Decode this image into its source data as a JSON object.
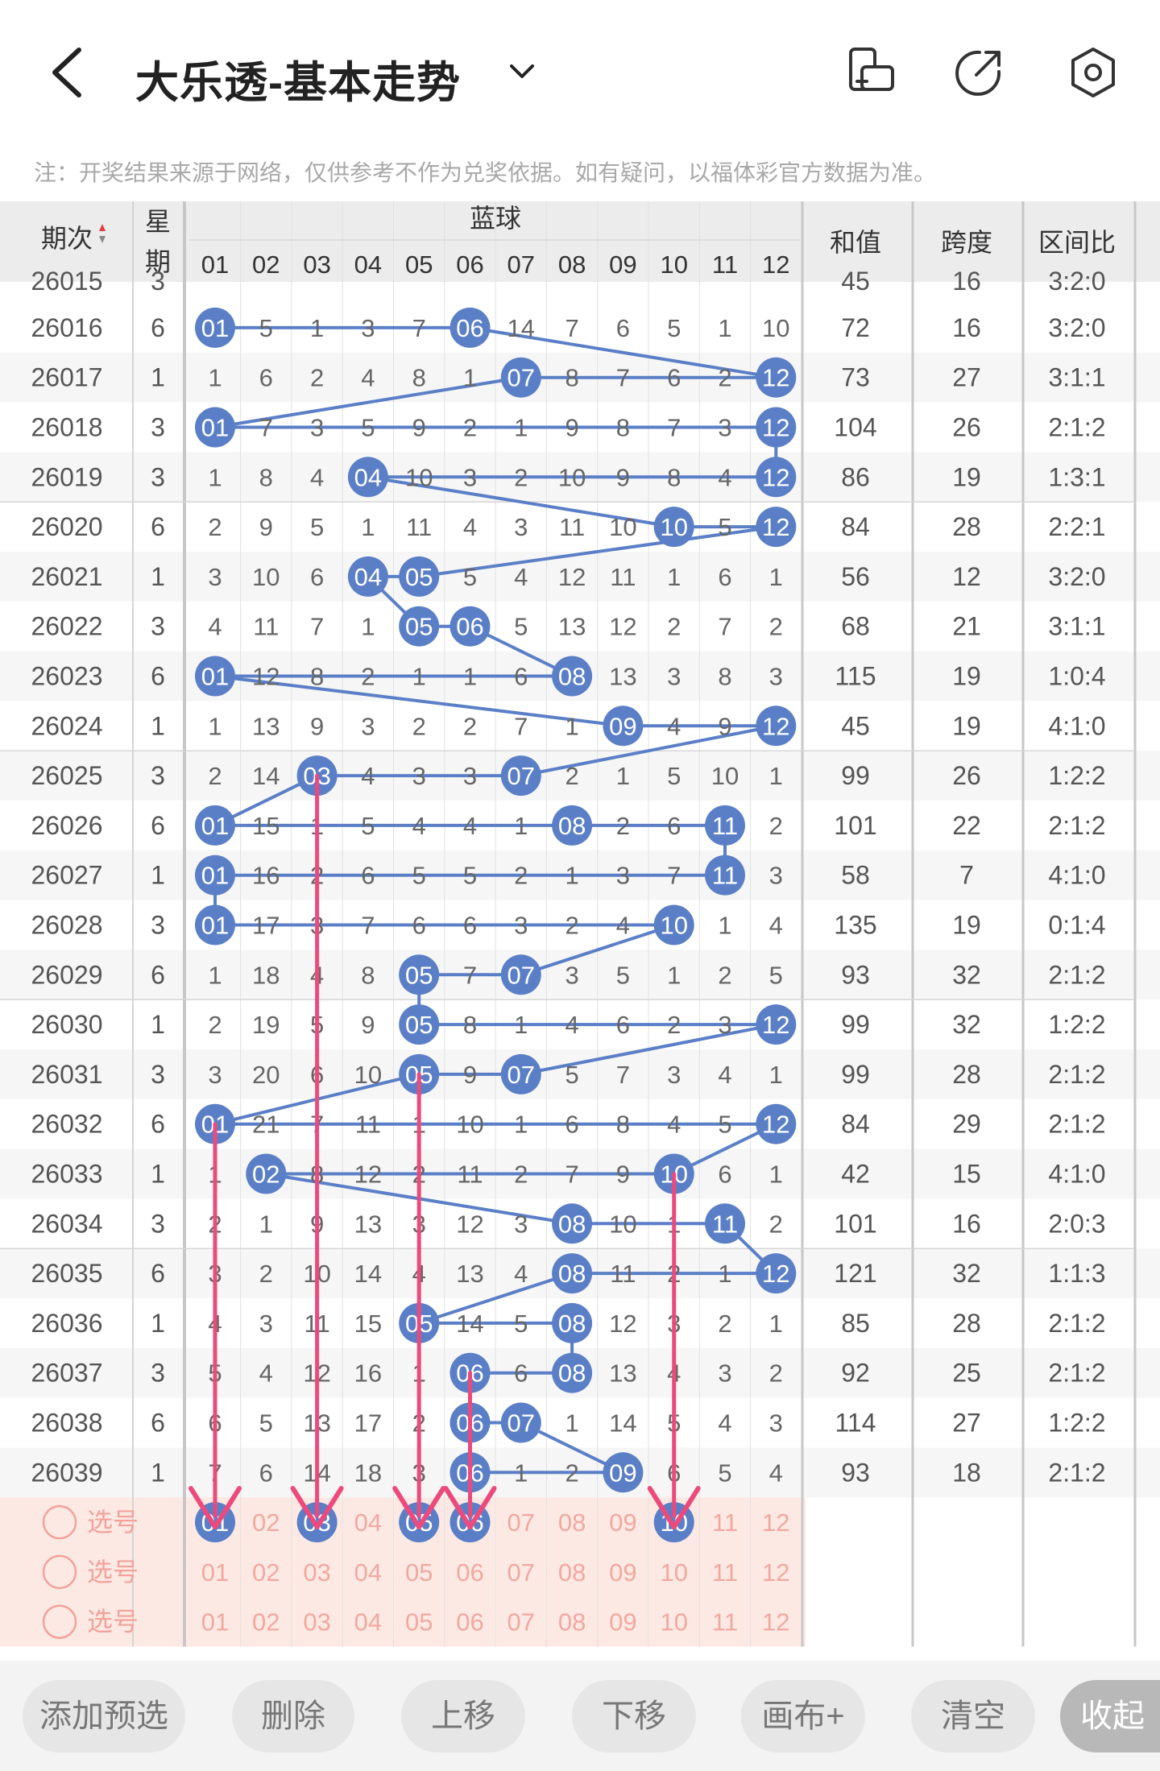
{
  "header": {
    "title": "大乐透-基本走势",
    "note": "注：开奖结果来源于网络，仅供参考不作为兑奖依据。如有疑问，以福体彩官方数据为准。"
  },
  "columns": {
    "period": "期次",
    "week_top": "星",
    "week_bottom": "期",
    "blue_group": "蓝球",
    "numbers": [
      "01",
      "02",
      "03",
      "04",
      "05",
      "06",
      "07",
      "08",
      "09",
      "10",
      "11",
      "12"
    ],
    "sum": "和值",
    "span": "跨度",
    "ratio": "区间比"
  },
  "partial_row": {
    "period": "26015",
    "week": "3",
    "sum": "45",
    "span": "16",
    "ratio": "3:2:0"
  },
  "rows": [
    {
      "period": "26016",
      "week": "6",
      "cells": [
        "01",
        "5",
        "1",
        "3",
        "7",
        "06",
        "14",
        "7",
        "6",
        "5",
        "1",
        "10"
      ],
      "sum": "72",
      "span": "16",
      "ratio": "3:2:0"
    },
    {
      "period": "26017",
      "week": "1",
      "cells": [
        "1",
        "6",
        "2",
        "4",
        "8",
        "1",
        "07",
        "8",
        "7",
        "6",
        "2",
        "12"
      ],
      "sum": "73",
      "span": "27",
      "ratio": "3:1:1"
    },
    {
      "period": "26018",
      "week": "3",
      "cells": [
        "01",
        "7",
        "3",
        "5",
        "9",
        "2",
        "1",
        "9",
        "8",
        "7",
        "3",
        "12"
      ],
      "sum": "104",
      "span": "26",
      "ratio": "2:1:2"
    },
    {
      "period": "26019",
      "week": "3",
      "cells": [
        "1",
        "8",
        "4",
        "04",
        "10",
        "3",
        "2",
        "10",
        "9",
        "8",
        "4",
        "12"
      ],
      "sum": "86",
      "span": "19",
      "ratio": "1:3:1"
    },
    {
      "period": "26020",
      "week": "6",
      "cells": [
        "2",
        "9",
        "5",
        "1",
        "11",
        "4",
        "3",
        "11",
        "10",
        "10",
        "5",
        "12"
      ],
      "sum": "84",
      "span": "28",
      "ratio": "2:2:1"
    },
    {
      "period": "26021",
      "week": "1",
      "cells": [
        "3",
        "10",
        "6",
        "04",
        "05",
        "5",
        "4",
        "12",
        "11",
        "1",
        "6",
        "1"
      ],
      "sum": "56",
      "span": "12",
      "ratio": "3:2:0"
    },
    {
      "period": "26022",
      "week": "3",
      "cells": [
        "4",
        "11",
        "7",
        "1",
        "05",
        "06",
        "5",
        "13",
        "12",
        "2",
        "7",
        "2"
      ],
      "sum": "68",
      "span": "21",
      "ratio": "3:1:1"
    },
    {
      "period": "26023",
      "week": "6",
      "cells": [
        "01",
        "12",
        "8",
        "2",
        "1",
        "1",
        "6",
        "08",
        "13",
        "3",
        "8",
        "3"
      ],
      "sum": "115",
      "span": "19",
      "ratio": "1:0:4"
    },
    {
      "period": "26024",
      "week": "1",
      "cells": [
        "1",
        "13",
        "9",
        "3",
        "2",
        "2",
        "7",
        "1",
        "09",
        "4",
        "9",
        "12"
      ],
      "sum": "45",
      "span": "19",
      "ratio": "4:1:0"
    },
    {
      "period": "26025",
      "week": "3",
      "cells": [
        "2",
        "14",
        "03",
        "4",
        "3",
        "3",
        "07",
        "2",
        "1",
        "5",
        "10",
        "1"
      ],
      "sum": "99",
      "span": "26",
      "ratio": "1:2:2"
    },
    {
      "period": "26026",
      "week": "6",
      "cells": [
        "01",
        "15",
        "1",
        "5",
        "4",
        "4",
        "1",
        "08",
        "2",
        "6",
        "11",
        "2"
      ],
      "sum": "101",
      "span": "22",
      "ratio": "2:1:2"
    },
    {
      "period": "26027",
      "week": "1",
      "cells": [
        "01",
        "16",
        "2",
        "6",
        "5",
        "5",
        "2",
        "1",
        "3",
        "7",
        "11",
        "3"
      ],
      "sum": "58",
      "span": "7",
      "ratio": "4:1:0"
    },
    {
      "period": "26028",
      "week": "3",
      "cells": [
        "01",
        "17",
        "3",
        "7",
        "6",
        "6",
        "3",
        "2",
        "4",
        "10",
        "1",
        "4"
      ],
      "sum": "135",
      "span": "19",
      "ratio": "0:1:4"
    },
    {
      "period": "26029",
      "week": "6",
      "cells": [
        "1",
        "18",
        "4",
        "8",
        "05",
        "7",
        "07",
        "3",
        "5",
        "1",
        "2",
        "5"
      ],
      "sum": "93",
      "span": "32",
      "ratio": "2:1:2"
    },
    {
      "period": "26030",
      "week": "1",
      "cells": [
        "2",
        "19",
        "5",
        "9",
        "05",
        "8",
        "1",
        "4",
        "6",
        "2",
        "3",
        "12"
      ],
      "sum": "99",
      "span": "32",
      "ratio": "1:2:2"
    },
    {
      "period": "26031",
      "week": "3",
      "cells": [
        "3",
        "20",
        "6",
        "10",
        "05",
        "9",
        "07",
        "5",
        "7",
        "3",
        "4",
        "1"
      ],
      "sum": "99",
      "span": "28",
      "ratio": "2:1:2"
    },
    {
      "period": "26032",
      "week": "6",
      "cells": [
        "01",
        "21",
        "7",
        "11",
        "1",
        "10",
        "1",
        "6",
        "8",
        "4",
        "5",
        "12"
      ],
      "sum": "84",
      "span": "29",
      "ratio": "2:1:2"
    },
    {
      "period": "26033",
      "week": "1",
      "cells": [
        "1",
        "02",
        "8",
        "12",
        "2",
        "11",
        "2",
        "7",
        "9",
        "10",
        "6",
        "1"
      ],
      "sum": "42",
      "span": "15",
      "ratio": "4:1:0"
    },
    {
      "period": "26034",
      "week": "3",
      "cells": [
        "2",
        "1",
        "9",
        "13",
        "3",
        "12",
        "3",
        "08",
        "10",
        "1",
        "11",
        "2"
      ],
      "sum": "101",
      "span": "16",
      "ratio": "2:0:3"
    },
    {
      "period": "26035",
      "week": "6",
      "cells": [
        "3",
        "2",
        "10",
        "14",
        "4",
        "13",
        "4",
        "08",
        "11",
        "2",
        "1",
        "12"
      ],
      "sum": "121",
      "span": "32",
      "ratio": "1:1:3"
    },
    {
      "period": "26036",
      "week": "1",
      "cells": [
        "4",
        "3",
        "11",
        "15",
        "05",
        "14",
        "5",
        "08",
        "12",
        "3",
        "2",
        "1"
      ],
      "sum": "85",
      "span": "28",
      "ratio": "2:1:2"
    },
    {
      "period": "26037",
      "week": "3",
      "cells": [
        "5",
        "4",
        "12",
        "16",
        "1",
        "06",
        "6",
        "08",
        "13",
        "4",
        "3",
        "2"
      ],
      "sum": "92",
      "span": "25",
      "ratio": "2:1:2"
    },
    {
      "period": "26038",
      "week": "6",
      "cells": [
        "6",
        "5",
        "13",
        "17",
        "2",
        "06",
        "07",
        "1",
        "14",
        "5",
        "4",
        "3"
      ],
      "sum": "114",
      "span": "27",
      "ratio": "1:2:2"
    },
    {
      "period": "26039",
      "week": "1",
      "cells": [
        "7",
        "6",
        "14",
        "18",
        "3",
        "06",
        "1",
        "2",
        "09",
        "6",
        "5",
        "4"
      ],
      "sum": "93",
      "span": "18",
      "ratio": "2:1:2"
    }
  ],
  "pick_label": "选号",
  "pick_selected": [
    "01",
    "03",
    "05",
    "06",
    "10"
  ],
  "buttons": {
    "add": "添加预选",
    "delete": "删除",
    "up": "上移",
    "down": "下移",
    "canvas": "画布+",
    "clear": "清空",
    "collapse": "收起"
  },
  "colors": {
    "ball": "#5b7fc7",
    "line": "#5b7fc7",
    "arrow": "#ec4a7d",
    "pick_bg": "#fde9e4",
    "pick_text": "#f2a8a0",
    "header_bg": "#ececec"
  }
}
